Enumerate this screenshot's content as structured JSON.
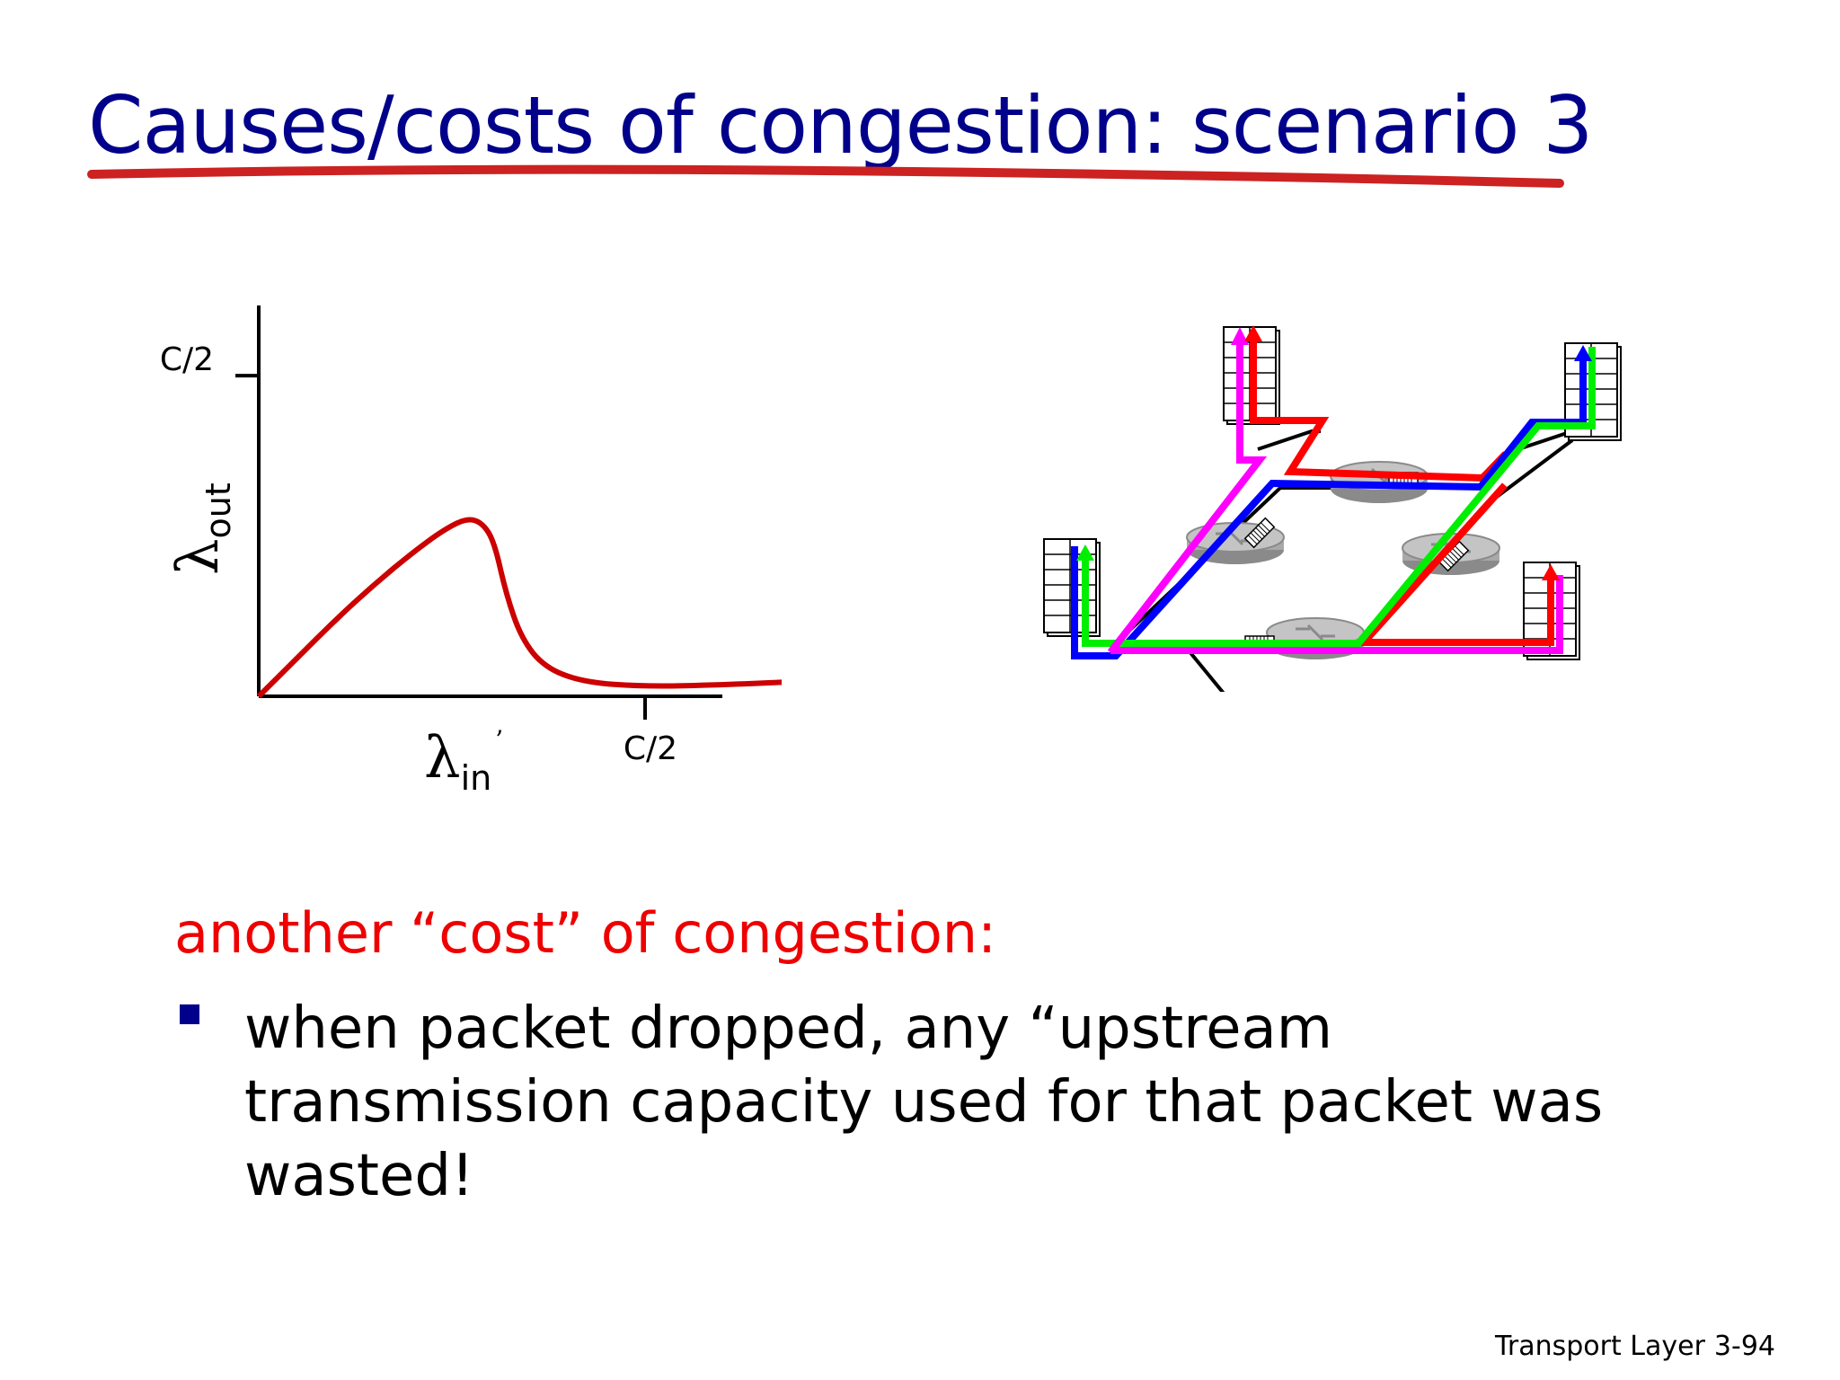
{
  "slide": {
    "title": "Causes/costs of congestion: scenario 3",
    "subhead": "another “cost” of congestion:",
    "bullets": [
      "when packet dropped, any “upstream transmission capacity used for that packet was wasted!"
    ],
    "footer": {
      "section": "Transport Layer",
      "page": "3-94"
    }
  },
  "colors": {
    "title": "#00008b",
    "underline": "#cc2222",
    "subhead": "#ee0000",
    "curve": "#cc0000",
    "bullet_marker": "#00008b",
    "flow_red": "#ff0000",
    "flow_blue": "#0000ff",
    "flow_green": "#00ee00",
    "flow_magenta": "#ff00ff"
  },
  "chart_data": {
    "type": "line",
    "title": "",
    "ylabel": "λ",
    "ylabel_sub": "out",
    "xlabel": "λ",
    "xlabel_sub": "in",
    "xlabel_sup": "’",
    "x_tick_label": "C/2",
    "y_tick_label": "C/2",
    "xlim": [
      0,
      0.6
    ],
    "ylim": [
      0,
      0.5
    ],
    "x_tick": 0.5,
    "y_tick": 0.5,
    "grid": false,
    "series": [
      {
        "values": [
          [
            0,
            0
          ],
          [
            0.05,
            0.06
          ],
          [
            0.1,
            0.12
          ],
          [
            0.15,
            0.175
          ],
          [
            0.2,
            0.225
          ],
          [
            0.24,
            0.26
          ],
          [
            0.27,
            0.278
          ],
          [
            0.29,
            0.27
          ],
          [
            0.305,
            0.24
          ],
          [
            0.32,
            0.16
          ],
          [
            0.34,
            0.09
          ],
          [
            0.37,
            0.045
          ],
          [
            0.42,
            0.022
          ],
          [
            0.5,
            0.015
          ],
          [
            0.6,
            0.018
          ],
          [
            0.68,
            0.022
          ]
        ]
      }
    ]
  },
  "network": {
    "icons": [
      "router-icon",
      "host-icon"
    ],
    "hosts": 4,
    "routers": 4,
    "flows": [
      "red",
      "blue",
      "green",
      "magenta"
    ]
  }
}
